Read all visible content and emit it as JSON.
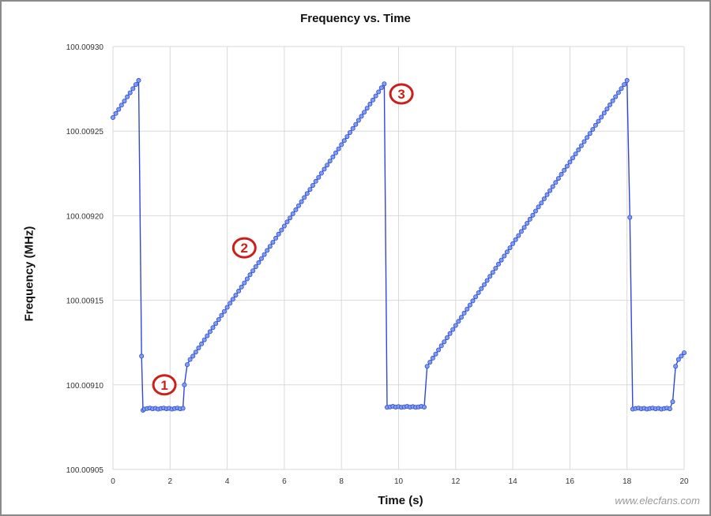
{
  "chart_data": {
    "type": "line",
    "title": "Frequency vs. Time",
    "xlabel": "Time (s)",
    "ylabel": "Frequency (MHz)",
    "xlim": [
      0,
      20
    ],
    "ylim": [
      100.00905,
      100.0093
    ],
    "xticks": [
      0,
      2,
      4,
      6,
      8,
      10,
      12,
      14,
      16,
      18,
      20
    ],
    "xtick_labels": [
      "0",
      "2",
      "4",
      "6",
      "8",
      "10",
      "12",
      "14",
      "16",
      "18",
      "20"
    ],
    "yticks": [
      100.00905,
      100.0091,
      100.00915,
      100.0092,
      100.00925,
      100.0093
    ],
    "ytick_labels": [
      "100.00905",
      "100.00910",
      "100.00915",
      "100.00920",
      "100.00925",
      "100.00930"
    ],
    "grid": true,
    "legend": "none",
    "line_color": "#2f48d8",
    "marker_fill": "#7fa0ee",
    "annotation_color": "#cc1f1a",
    "segments": [
      {
        "kind": "ramp",
        "x0": 0.0,
        "x1": 0.9,
        "y0": 100.009258,
        "y1": 100.00928
      },
      {
        "kind": "drop",
        "x": [
          1.0,
          1.05
        ],
        "y": [
          100.009117,
          100.009085
        ]
      },
      {
        "kind": "flat",
        "x0": 1.1,
        "x1": 2.45,
        "y": 100.009086
      },
      {
        "kind": "points",
        "x": [
          2.5,
          2.6,
          2.7
        ],
        "y": [
          100.0091,
          100.009112,
          100.009115
        ]
      },
      {
        "kind": "ramp",
        "x0": 2.8,
        "x1": 9.5,
        "y0": 100.009117,
        "y1": 100.009278
      },
      {
        "kind": "flat",
        "x0": 9.6,
        "x1": 10.9,
        "y": 100.009087
      },
      {
        "kind": "ramp",
        "x0": 11.0,
        "x1": 18.0,
        "y0": 100.009111,
        "y1": 100.00928
      },
      {
        "kind": "points",
        "x": [
          18.1
        ],
        "y": [
          100.009199
        ]
      },
      {
        "kind": "flat",
        "x0": 18.2,
        "x1": 19.5,
        "y": 100.009086
      },
      {
        "kind": "points",
        "x": [
          19.6,
          19.7,
          19.8,
          19.9,
          20.0
        ],
        "y": [
          100.00909,
          100.009111,
          100.009115,
          100.009117,
          100.009119
        ]
      }
    ],
    "annotations": [
      {
        "label": "1",
        "x": 1.8,
        "y": 100.0091
      },
      {
        "label": "2",
        "x": 4.6,
        "y": 100.009181
      },
      {
        "label": "3",
        "x": 10.1,
        "y": 100.009272
      }
    ]
  },
  "watermark": "www.elecfans.com"
}
